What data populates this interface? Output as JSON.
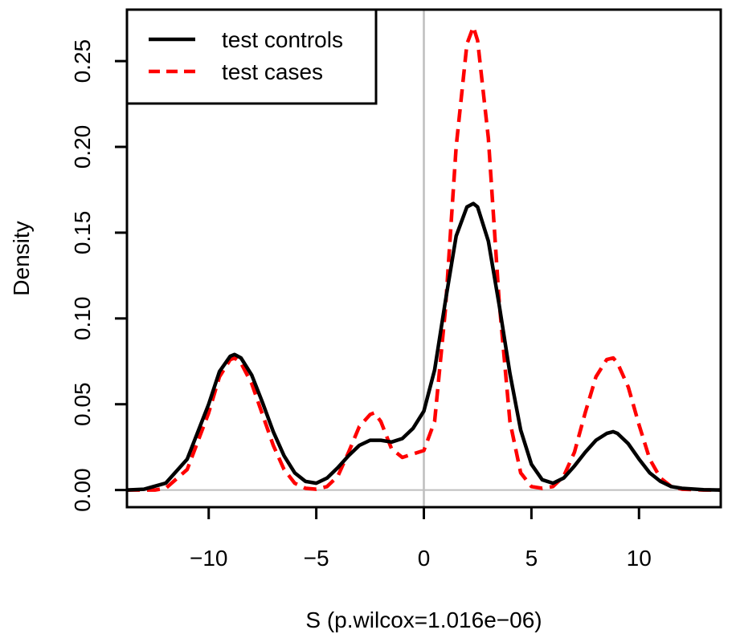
{
  "chart_data": {
    "type": "line",
    "title": "",
    "xlabel": "S (p.wilcox=1.016e−06)",
    "ylabel": "Density",
    "xlim": [
      -13.8,
      13.8
    ],
    "ylim": [
      -0.01,
      0.28
    ],
    "x_ticks": [
      -10,
      -5,
      0,
      5,
      10
    ],
    "x_tick_labels": [
      "−10",
      "−5",
      "0",
      "5",
      "10"
    ],
    "y_ticks": [
      0.0,
      0.05,
      0.1,
      0.15,
      0.2,
      0.25
    ],
    "y_tick_labels": [
      "0.00",
      "0.05",
      "0.10",
      "0.15",
      "0.20",
      "0.25"
    ],
    "reference_lines": {
      "vertical_x": 0,
      "horizontal_y": 0,
      "color": "#bebebe"
    },
    "legend": {
      "position": "top-left",
      "entries": [
        {
          "label": "test controls",
          "color": "#000000",
          "style": "solid"
        },
        {
          "label": "test cases",
          "color": "#ff0000",
          "style": "dashed"
        }
      ]
    },
    "series": [
      {
        "name": "test controls",
        "color": "#000000",
        "style": "solid",
        "x": [
          -13.8,
          -13,
          -12,
          -11,
          -10,
          -9.5,
          -9,
          -8.8,
          -8.5,
          -8,
          -7.5,
          -7,
          -6.5,
          -6,
          -5.5,
          -5,
          -4.5,
          -4,
          -3.5,
          -3,
          -2.5,
          -2,
          -1.5,
          -1,
          -0.5,
          0,
          0.5,
          1,
          1.5,
          2,
          2.3,
          2.5,
          3,
          3.5,
          4,
          4.5,
          5,
          5.5,
          6,
          6.5,
          7,
          7.5,
          8,
          8.5,
          8.8,
          9,
          9.5,
          10,
          10.5,
          11,
          11.5,
          12,
          13,
          13.8
        ],
        "y": [
          0.0,
          0.0005,
          0.004,
          0.018,
          0.05,
          0.069,
          0.078,
          0.079,
          0.077,
          0.067,
          0.051,
          0.034,
          0.02,
          0.01,
          0.005,
          0.004,
          0.007,
          0.013,
          0.02,
          0.026,
          0.029,
          0.029,
          0.028,
          0.03,
          0.036,
          0.046,
          0.07,
          0.11,
          0.148,
          0.165,
          0.167,
          0.165,
          0.145,
          0.108,
          0.068,
          0.035,
          0.015,
          0.006,
          0.004,
          0.007,
          0.014,
          0.022,
          0.029,
          0.033,
          0.034,
          0.033,
          0.027,
          0.018,
          0.01,
          0.005,
          0.002,
          0.001,
          0.0002,
          0.0
        ]
      },
      {
        "name": "test cases",
        "color": "#ff0000",
        "style": "dashed",
        "x": [
          -13.8,
          -12.5,
          -12,
          -11,
          -10,
          -9.5,
          -9,
          -8.8,
          -8.5,
          -8,
          -7.5,
          -7,
          -6.5,
          -6,
          -5.5,
          -5,
          -4.5,
          -4,
          -3.5,
          -3,
          -2.5,
          -2.3,
          -2,
          -1.5,
          -1,
          -0.5,
          0,
          0.5,
          1,
          1.5,
          2,
          2.3,
          2.5,
          3,
          3.5,
          4,
          4.5,
          5,
          5.5,
          6,
          6.5,
          7,
          7.5,
          8,
          8.5,
          8.8,
          9,
          9.5,
          10,
          10.5,
          11,
          11.5,
          12,
          13,
          13.8
        ],
        "y": [
          0.0,
          0.0,
          0.001,
          0.012,
          0.045,
          0.066,
          0.076,
          0.077,
          0.074,
          0.062,
          0.044,
          0.026,
          0.012,
          0.004,
          0.001,
          0.0005,
          0.002,
          0.008,
          0.022,
          0.037,
          0.044,
          0.045,
          0.04,
          0.024,
          0.019,
          0.021,
          0.023,
          0.04,
          0.105,
          0.2,
          0.26,
          0.27,
          0.262,
          0.205,
          0.11,
          0.04,
          0.01,
          0.002,
          0.001,
          0.002,
          0.008,
          0.022,
          0.045,
          0.066,
          0.076,
          0.077,
          0.074,
          0.06,
          0.038,
          0.018,
          0.007,
          0.002,
          0.0005,
          0.0,
          0.0
        ]
      }
    ]
  }
}
